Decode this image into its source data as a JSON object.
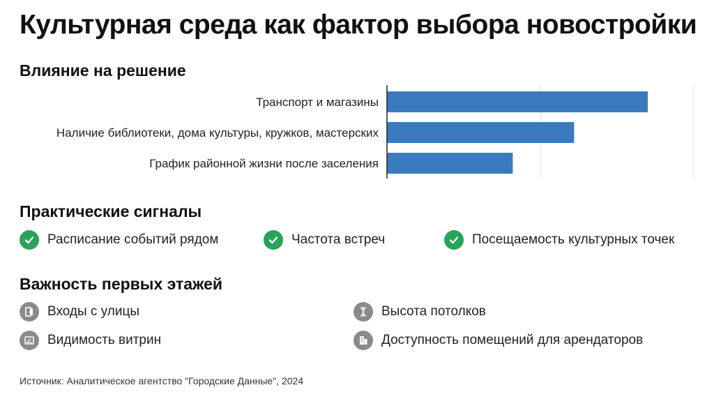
{
  "title": "Культурная среда как фактор выбора новостройки",
  "sections": {
    "influence": "Влияние на решение",
    "signals": "Практические сигналы",
    "floors": "Важность первых этажей"
  },
  "chart_data": {
    "type": "bar",
    "orientation": "horizontal",
    "categories": [
      "Транспорт и магазины",
      "Наличие библиотеки, дома культуры, кружков, мастерских",
      "График районной жизни после заселения"
    ],
    "values": [
      85,
      61,
      41
    ],
    "xlim": [
      0,
      100
    ],
    "grid": true,
    "bar_color": "#3a7bbf"
  },
  "signals": [
    {
      "label": "Расписание событий рядом",
      "icon": "check-icon"
    },
    {
      "label": "Частота встреч",
      "icon": "check-icon"
    },
    {
      "label": "Посещаемость культурных точек",
      "icon": "check-icon"
    }
  ],
  "floors": [
    {
      "label": "Входы с улицы",
      "icon": "door-icon"
    },
    {
      "label": "Высота потолков",
      "icon": "ceiling-height-icon"
    },
    {
      "label": "Видимость витрин",
      "icon": "storefront-icon"
    },
    {
      "label": "Доступность помещений для арендаторов",
      "icon": "building-icon"
    }
  ],
  "colors": {
    "accent_green": "#27a35a",
    "icon_gray": "#8a8a8a",
    "bar_blue": "#3a7bbf"
  },
  "source": "Источник: Аналитическое агентство \"Городские Данные\", 2024"
}
